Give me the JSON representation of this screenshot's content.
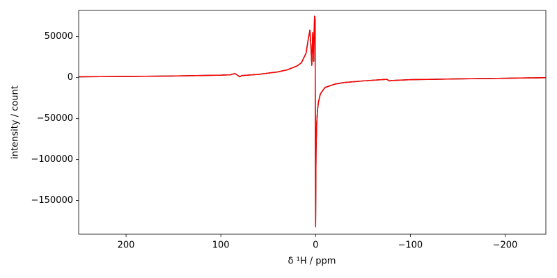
{
  "chart_data": {
    "type": "line",
    "xlabel": "δ ¹H / ppm",
    "ylabel": "intensity / count",
    "x": [
      250,
      200,
      150,
      100,
      90,
      85,
      80,
      78,
      60,
      40,
      30,
      20,
      15,
      10,
      8,
      6,
      5,
      4,
      3,
      2,
      1.5,
      1,
      0.5,
      0,
      -0.3,
      -0.5,
      -1,
      -2,
      -3,
      -5,
      -8,
      -10,
      -15,
      -20,
      -30,
      -50,
      -75,
      -78,
      -80,
      -100,
      -150,
      -200,
      -243
    ],
    "series": [
      {
        "color": "#000000",
        "values": [
          1000,
          1500,
          2000,
          3000,
          3500,
          5000,
          1000,
          2500,
          4000,
          7000,
          9500,
          14000,
          18000,
          30000,
          45000,
          58000,
          40000,
          15000,
          55000,
          20000,
          60000,
          75000,
          70000,
          -182000,
          -120000,
          -90000,
          -60000,
          -40000,
          -30000,
          -20000,
          -15000,
          -12000,
          -10000,
          -8000,
          -6000,
          -4000,
          -2000,
          -4000,
          -3500,
          -2500,
          -1500,
          -800,
          0
        ]
      },
      {
        "color": "#ff0000",
        "values": [
          1000,
          1500,
          2000,
          3000,
          3500,
          5000,
          1000,
          2500,
          4000,
          7000,
          9500,
          14000,
          18000,
          30000,
          45000,
          58000,
          40000,
          15000,
          55000,
          20000,
          60000,
          75000,
          70000,
          -182000,
          -120000,
          -90000,
          -60000,
          -40000,
          -30000,
          -20000,
          -15000,
          -12000,
          -10000,
          -8000,
          -6000,
          -4000,
          -2000,
          -4000,
          -3500,
          -2500,
          -1500,
          -800,
          0
        ]
      }
    ],
    "xlim": [
      250,
      -243
    ],
    "ylim": [
      -191000,
      82000
    ],
    "xticks": [
      200,
      100,
      0,
      {
        "value": -100,
        "label": "−100"
      },
      {
        "value": -200,
        "label": "−200"
      }
    ],
    "yticks": [
      50000,
      0,
      {
        "value": -50000,
        "label": "−50000"
      },
      {
        "value": -100000,
        "label": "−100000"
      },
      {
        "value": -150000,
        "label": "−150000"
      }
    ]
  }
}
